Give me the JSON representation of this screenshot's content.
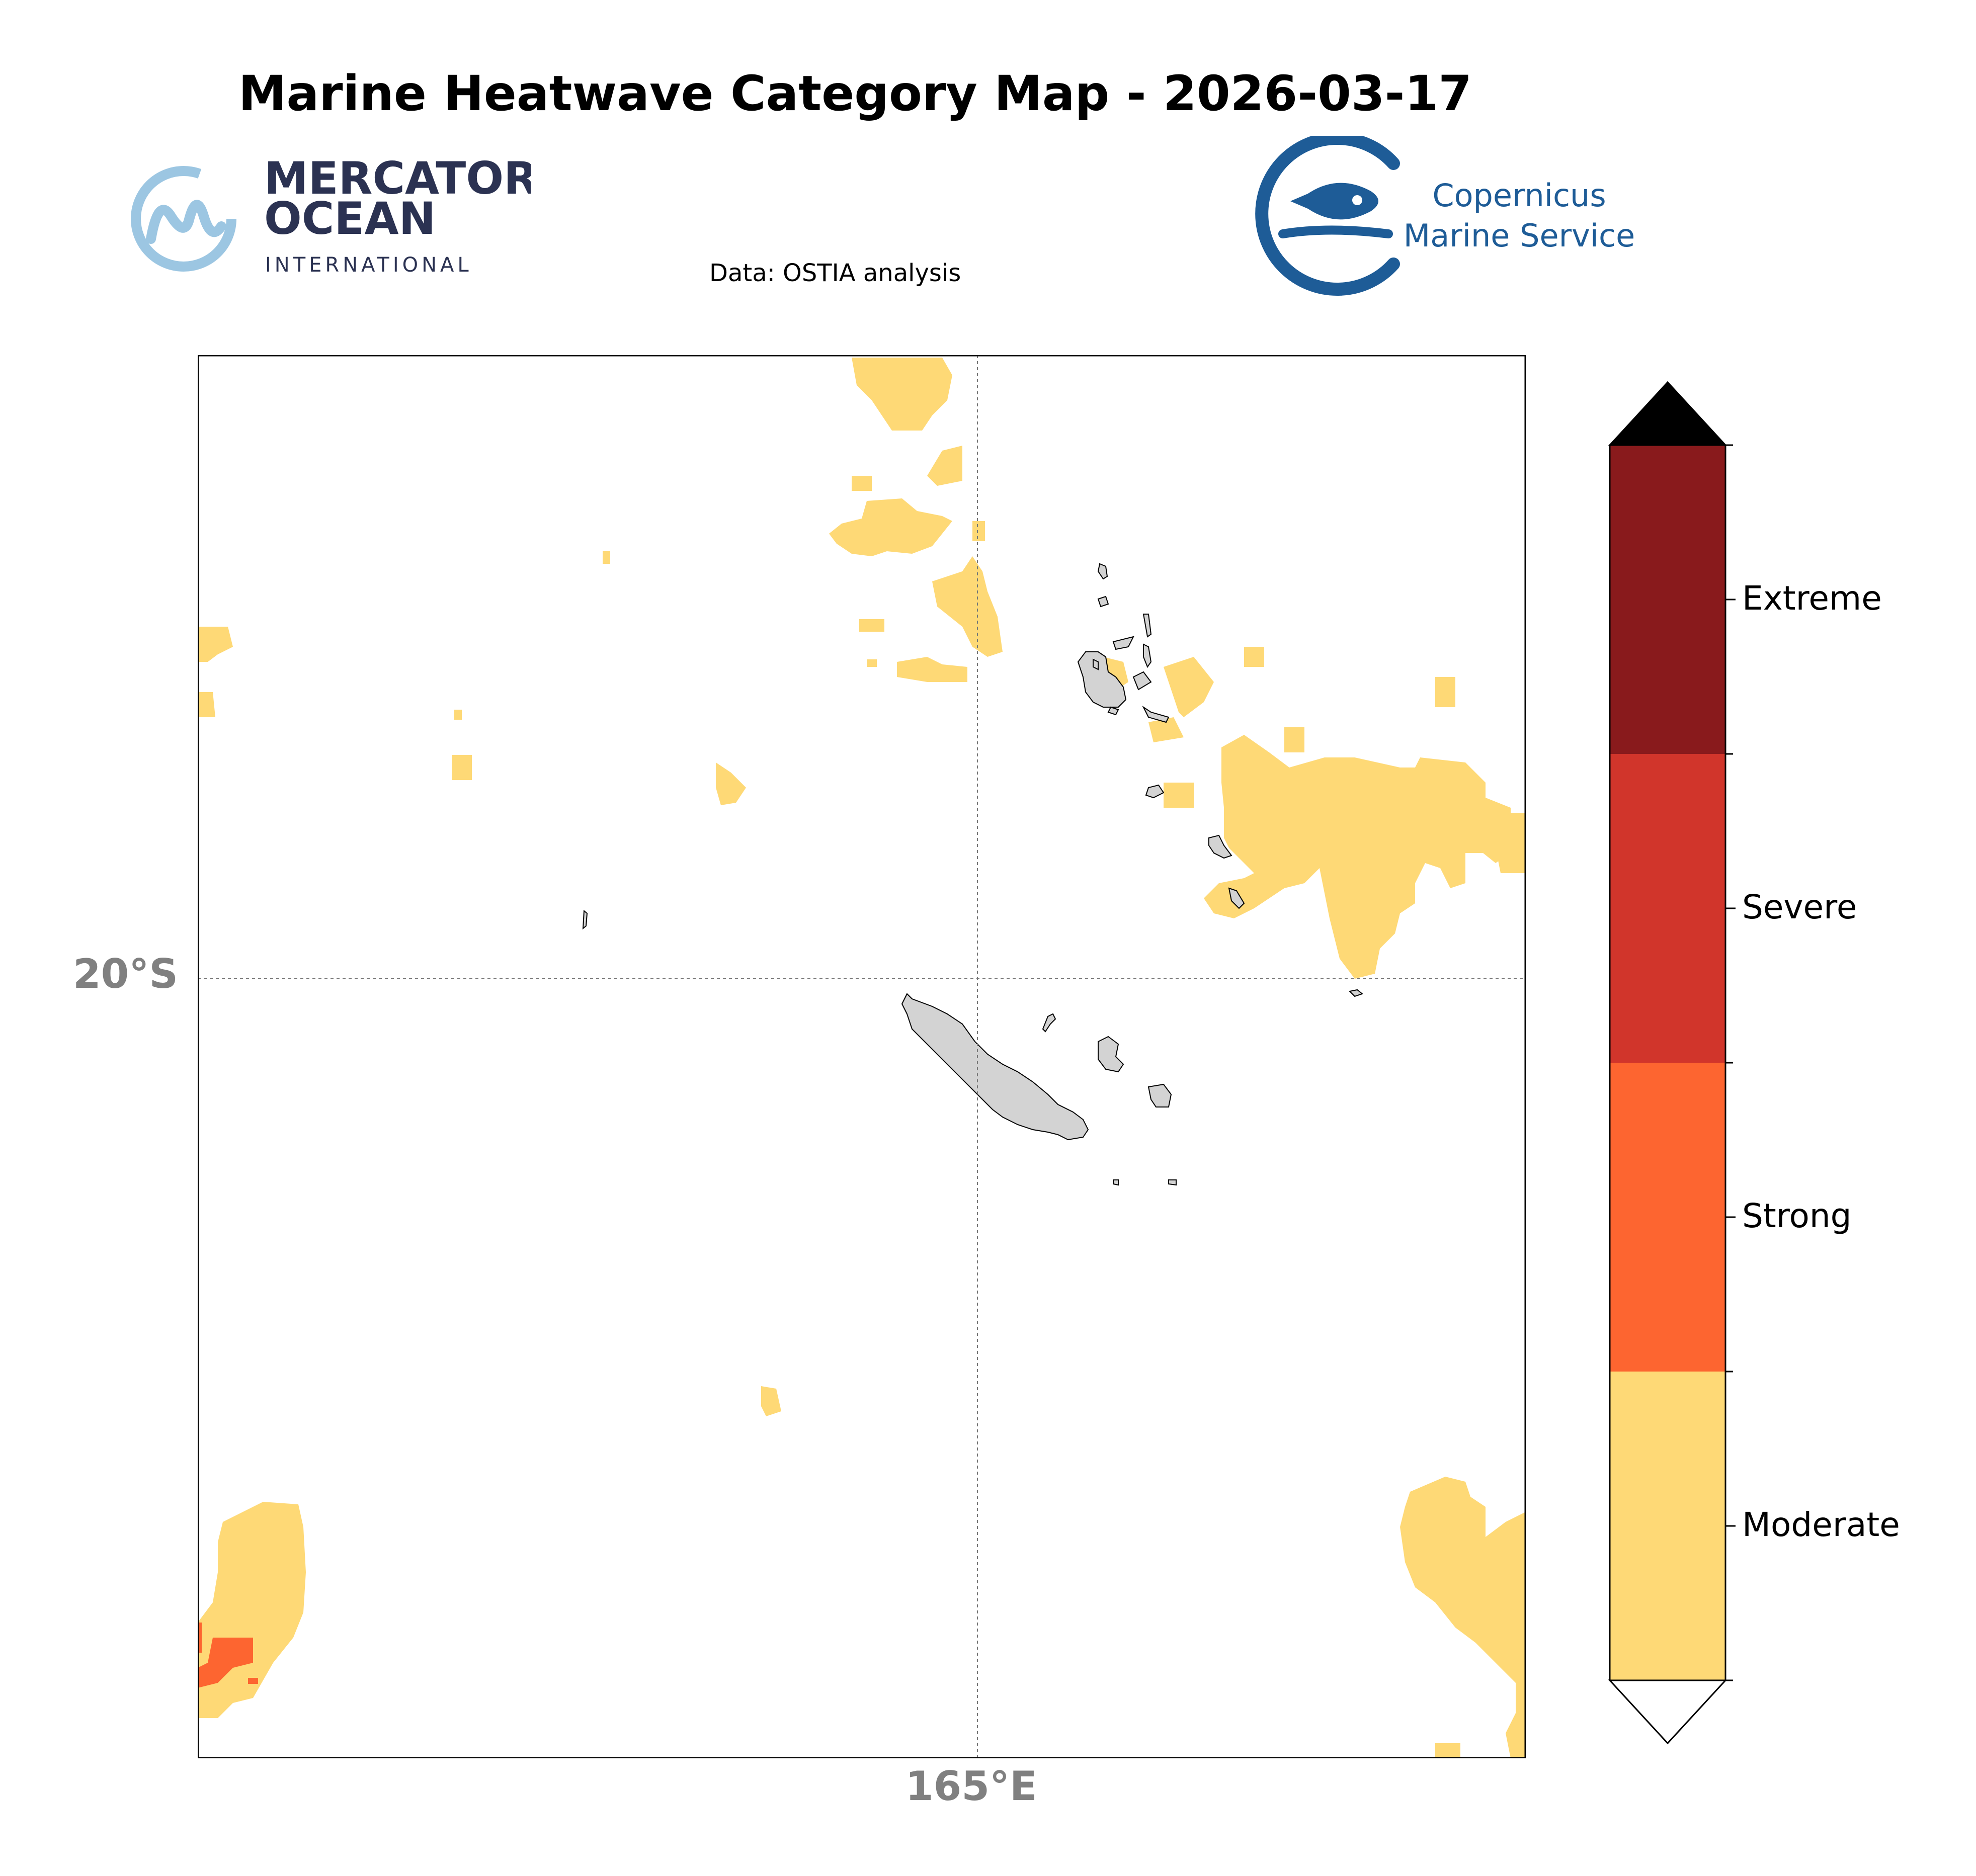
{
  "title": "Marine Heatwave Category Map - 2026-03-17",
  "source": "Data: OSTIA analysis",
  "logos": {
    "mercator": {
      "line1": "MERCATOR",
      "line2": "OCEAN",
      "line3": "INTERNATIONAL",
      "color": "#2b3252",
      "accent": "#9cc6e2"
    },
    "copernicus": {
      "line1": "Copernicus",
      "line2": "Marine Service",
      "color": "#1e5c97"
    }
  },
  "map": {
    "gridline_lat": "20°S",
    "gridline_lon": "165°E",
    "land_color": "#d3d3d3",
    "ocean_color": "#ffffff"
  },
  "legend": {
    "categories": [
      {
        "label": "Moderate",
        "color": "#fed976"
      },
      {
        "label": "Strong",
        "color": "#fd6530"
      },
      {
        "label": "Severe",
        "color": "#d1352b"
      },
      {
        "label": "Extreme",
        "color": "#891a1c"
      }
    ],
    "over_color": "#000000",
    "under_color": "#ffffff"
  }
}
